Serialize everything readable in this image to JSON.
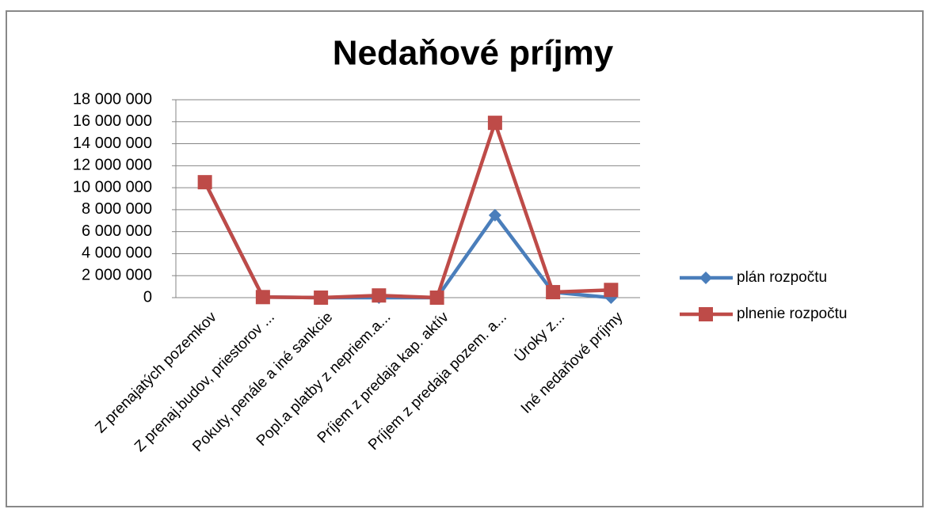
{
  "chart_data": {
    "type": "line",
    "title": "Nedaňové príjmy",
    "categories": [
      "Z prenajatých pozemkov",
      "Z prenaj.budov, priestorov ...",
      "Pokuty, penále a iné sankcie",
      "Popl.a platby z nepriem.a...",
      "Príjem z predaja kap. aktív",
      "Príjem z predaja pozem. a...",
      "Úroky z...",
      "Iné nedaňové príjmy"
    ],
    "series": [
      {
        "name": "plán rozpočtu",
        "color": "#4a7ebb",
        "marker": "diamond",
        "values": [
          10500000,
          50000,
          0,
          0,
          0,
          7500000,
          500000,
          0
        ]
      },
      {
        "name": "plnenie rozpočtu",
        "color": "#be4b48",
        "marker": "square",
        "values": [
          10500000,
          50000,
          0,
          200000,
          0,
          15900000,
          500000,
          700000
        ]
      }
    ],
    "ylim": [
      0,
      18000000
    ],
    "yticks": [
      0,
      {
        "value": 2000000,
        "label": "2 000 000"
      },
      {
        "value": 4000000,
        "label": "4 000 000"
      },
      {
        "value": 6000000,
        "label": "6 000 000"
      },
      {
        "value": 8000000,
        "label": "8 000 000"
      },
      {
        "value": 10000000,
        "label": "10 000 000"
      },
      {
        "value": 12000000,
        "label": "12 000 000"
      },
      {
        "value": 14000000,
        "label": "14 000 000"
      },
      {
        "value": 16000000,
        "label": "16 000 000"
      },
      {
        "value": 18000000,
        "label": "18 000 000"
      }
    ],
    "grid": true,
    "legend": "right"
  }
}
